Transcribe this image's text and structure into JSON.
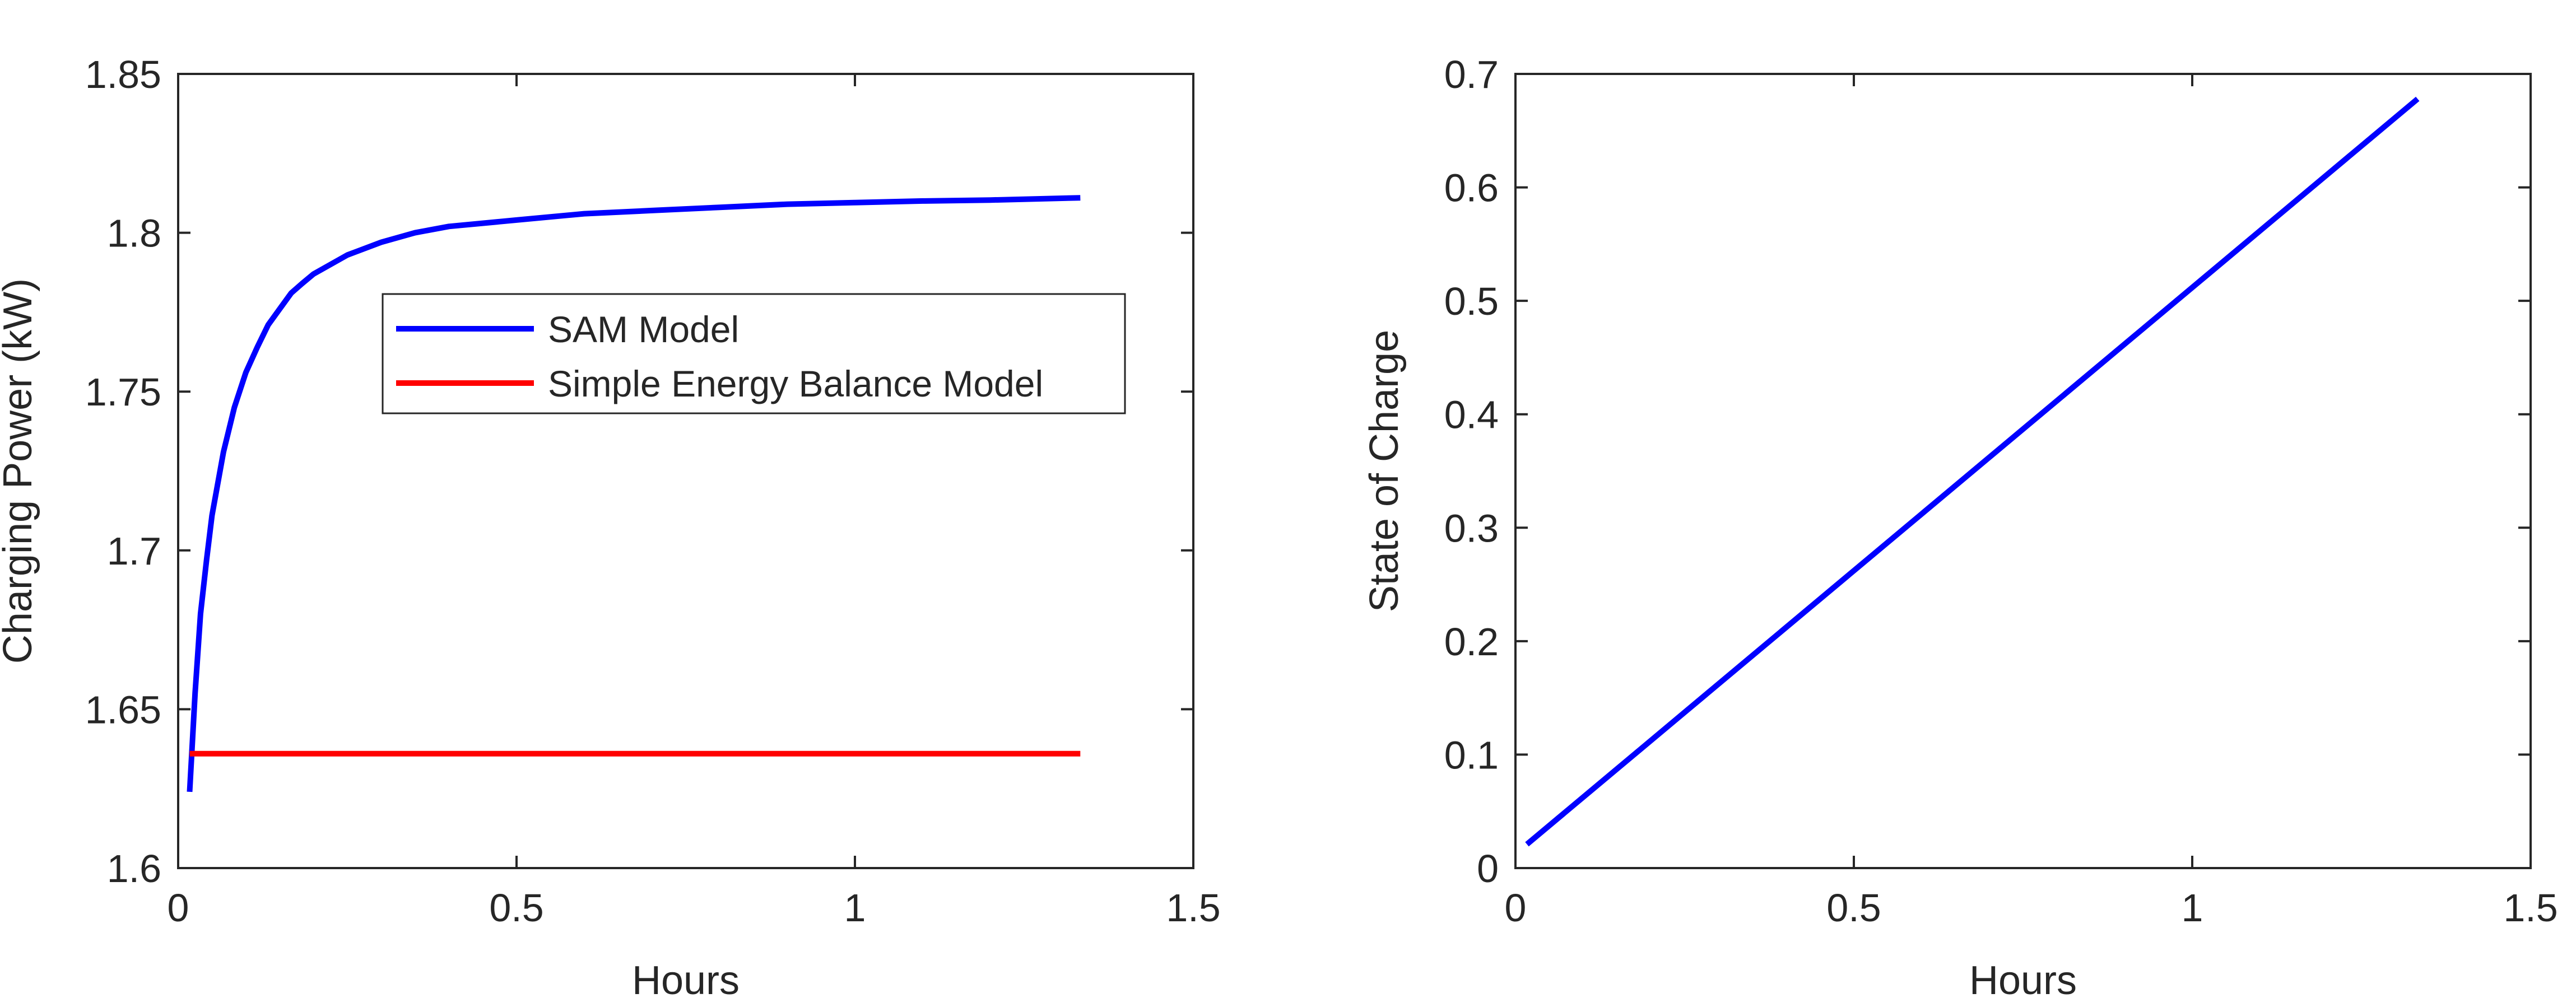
{
  "chart_data": [
    {
      "type": "line",
      "xlabel": "Hours",
      "ylabel": "Charging Power (kW)",
      "xlim": [
        0,
        1.5
      ],
      "ylim": [
        1.6,
        1.85
      ],
      "xticks": [
        "0",
        "0.5",
        "1",
        "1.5"
      ],
      "yticks": [
        "1.6",
        "1.65",
        "1.7",
        "1.75",
        "1.8",
        "1.85"
      ],
      "grid": false,
      "legend": "upper-center",
      "series": [
        {
          "name": "SAM Model",
          "color": "#0000ff",
          "x": [
            0.017,
            0.025,
            0.033,
            0.042,
            0.05,
            0.067,
            0.083,
            0.1,
            0.117,
            0.133,
            0.15,
            0.167,
            0.183,
            0.2,
            0.25,
            0.3,
            0.35,
            0.4,
            0.5,
            0.6,
            0.7,
            0.8,
            0.9,
            1.0,
            1.1,
            1.2,
            1.333
          ],
          "y": [
            1.624,
            1.655,
            1.68,
            1.697,
            1.711,
            1.731,
            1.745,
            1.756,
            1.764,
            1.771,
            1.776,
            1.781,
            1.784,
            1.787,
            1.793,
            1.797,
            1.8,
            1.802,
            1.804,
            1.806,
            1.807,
            1.808,
            1.809,
            1.8095,
            1.81,
            1.8103,
            1.811
          ]
        },
        {
          "name": "Simple Energy Balance Model",
          "color": "#ff0000",
          "x": [
            0.017,
            1.333
          ],
          "y": [
            1.636,
            1.636
          ]
        }
      ]
    },
    {
      "type": "line",
      "xlabel": "Hours",
      "ylabel": "State of Charge",
      "xlim": [
        0,
        1.5
      ],
      "ylim": [
        0,
        0.7
      ],
      "xticks": [
        "0",
        "0.5",
        "1",
        "1.5"
      ],
      "yticks": [
        "0",
        "0.1",
        "0.2",
        "0.3",
        "0.4",
        "0.5",
        "0.6",
        "0.7"
      ],
      "grid": false,
      "series": [
        {
          "color": "#0000ff",
          "x": [
            0.017,
            1.333
          ],
          "y": [
            0.021,
            0.678
          ]
        }
      ]
    }
  ]
}
